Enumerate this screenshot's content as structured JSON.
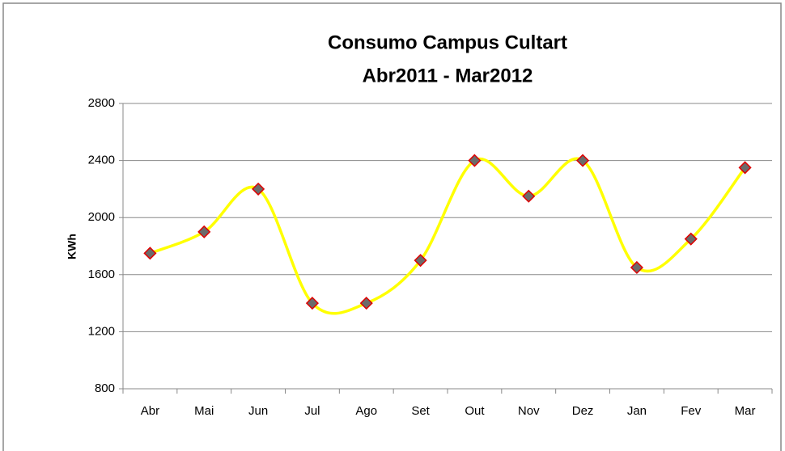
{
  "chart_data": {
    "type": "line",
    "title": "Consumo Campus Cultart",
    "subtitle": "Abr2011 - Mar2012",
    "ylabel": "KWh",
    "categories": [
      "Abr",
      "Mai",
      "Jun",
      "Jul",
      "Ago",
      "Set",
      "Out",
      "Nov",
      "Dez",
      "Jan",
      "Fev",
      "Mar"
    ],
    "series": [
      {
        "name": "KWh",
        "color": "#ffff00",
        "marker_color": "#6b6b6b",
        "marker_edge_color": "#e00000",
        "values": [
          1750,
          1900,
          2200,
          1400,
          1400,
          1700,
          2400,
          2150,
          2400,
          1650,
          1850,
          2350
        ]
      }
    ],
    "ylim": [
      800,
      2800
    ],
    "yticks": [
      800,
      1200,
      1600,
      2000,
      2400,
      2800
    ],
    "grid": true,
    "smooth": true
  }
}
